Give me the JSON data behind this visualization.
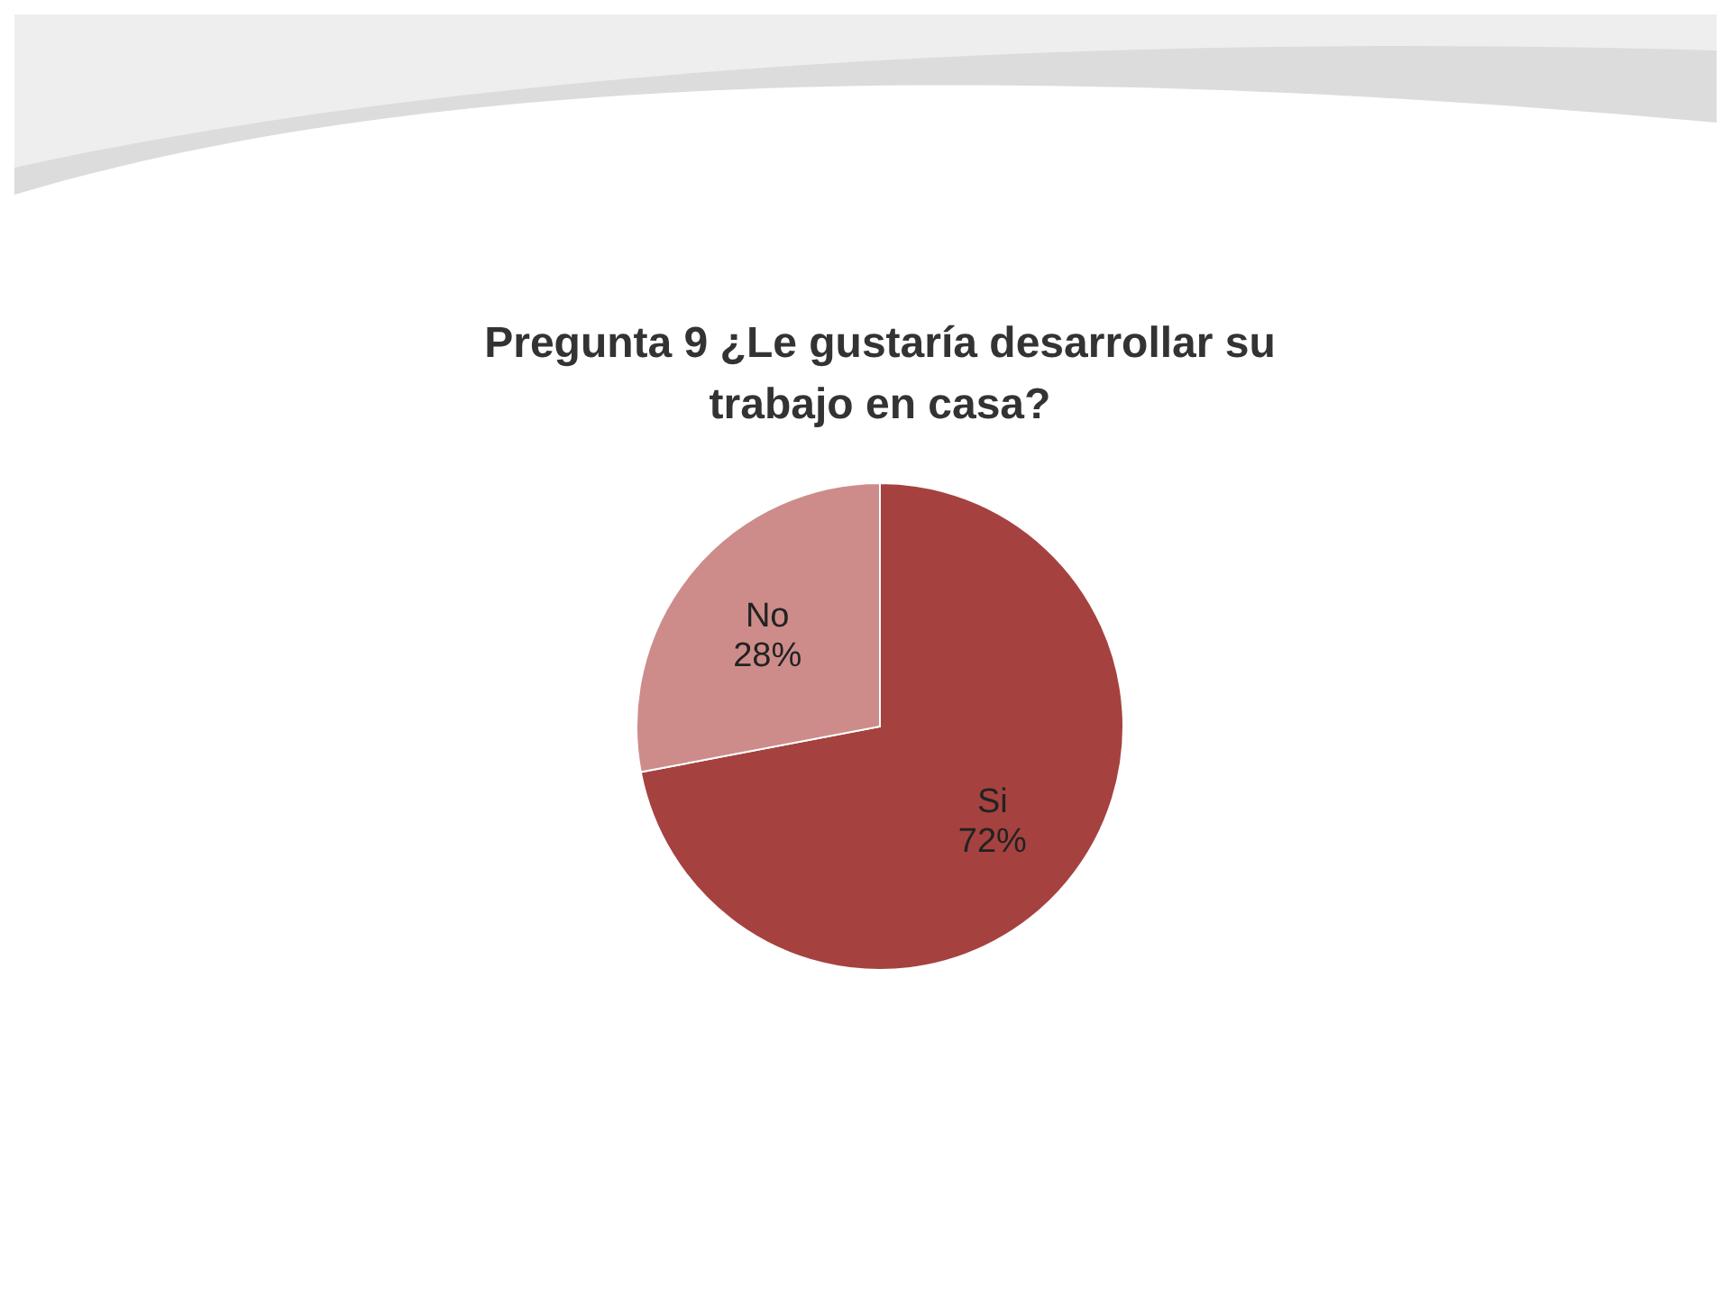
{
  "chart_data": {
    "type": "pie",
    "title": "Pregunta 9 ¿Le gustaría desarrollar su trabajo en casa?",
    "categories": [
      "Si",
      "No"
    ],
    "values": [
      72,
      28
    ],
    "colors": [
      "#a5423f",
      "#cd8c8a"
    ],
    "value_labels": [
      "72%",
      "28%"
    ],
    "legend": false
  }
}
